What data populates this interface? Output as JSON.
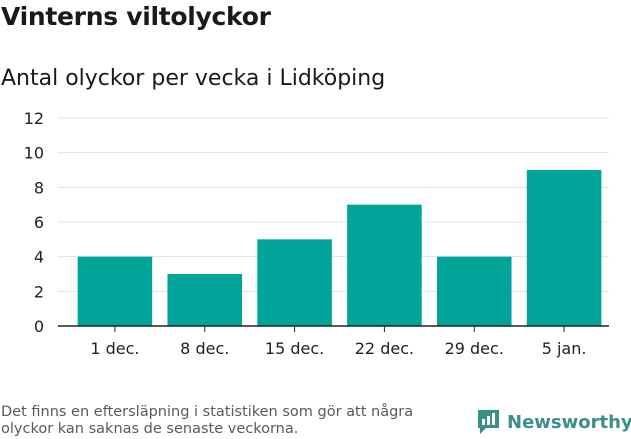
{
  "title": "Vinterns viltolyckor",
  "subtitle": "Antal olyckor per vecka i Lidköping",
  "note": "Det finns en eftersläpning i statistiken som gör att några olyckor kan saknas de senaste veckorna.",
  "brand": "Newsworthy",
  "colors": {
    "bar": "#00a499",
    "brand": "#3a8f87"
  },
  "chart_data": {
    "type": "bar",
    "categories": [
      "1 dec.",
      "8 dec.",
      "15 dec.",
      "22 dec.",
      "29 dec.",
      "5 jan."
    ],
    "values": [
      4,
      3,
      5,
      7,
      4,
      9
    ],
    "yticks": [
      "0",
      "2",
      "4",
      "6",
      "8",
      "10",
      "12"
    ],
    "ylim": [
      0,
      12
    ],
    "grid": true
  }
}
